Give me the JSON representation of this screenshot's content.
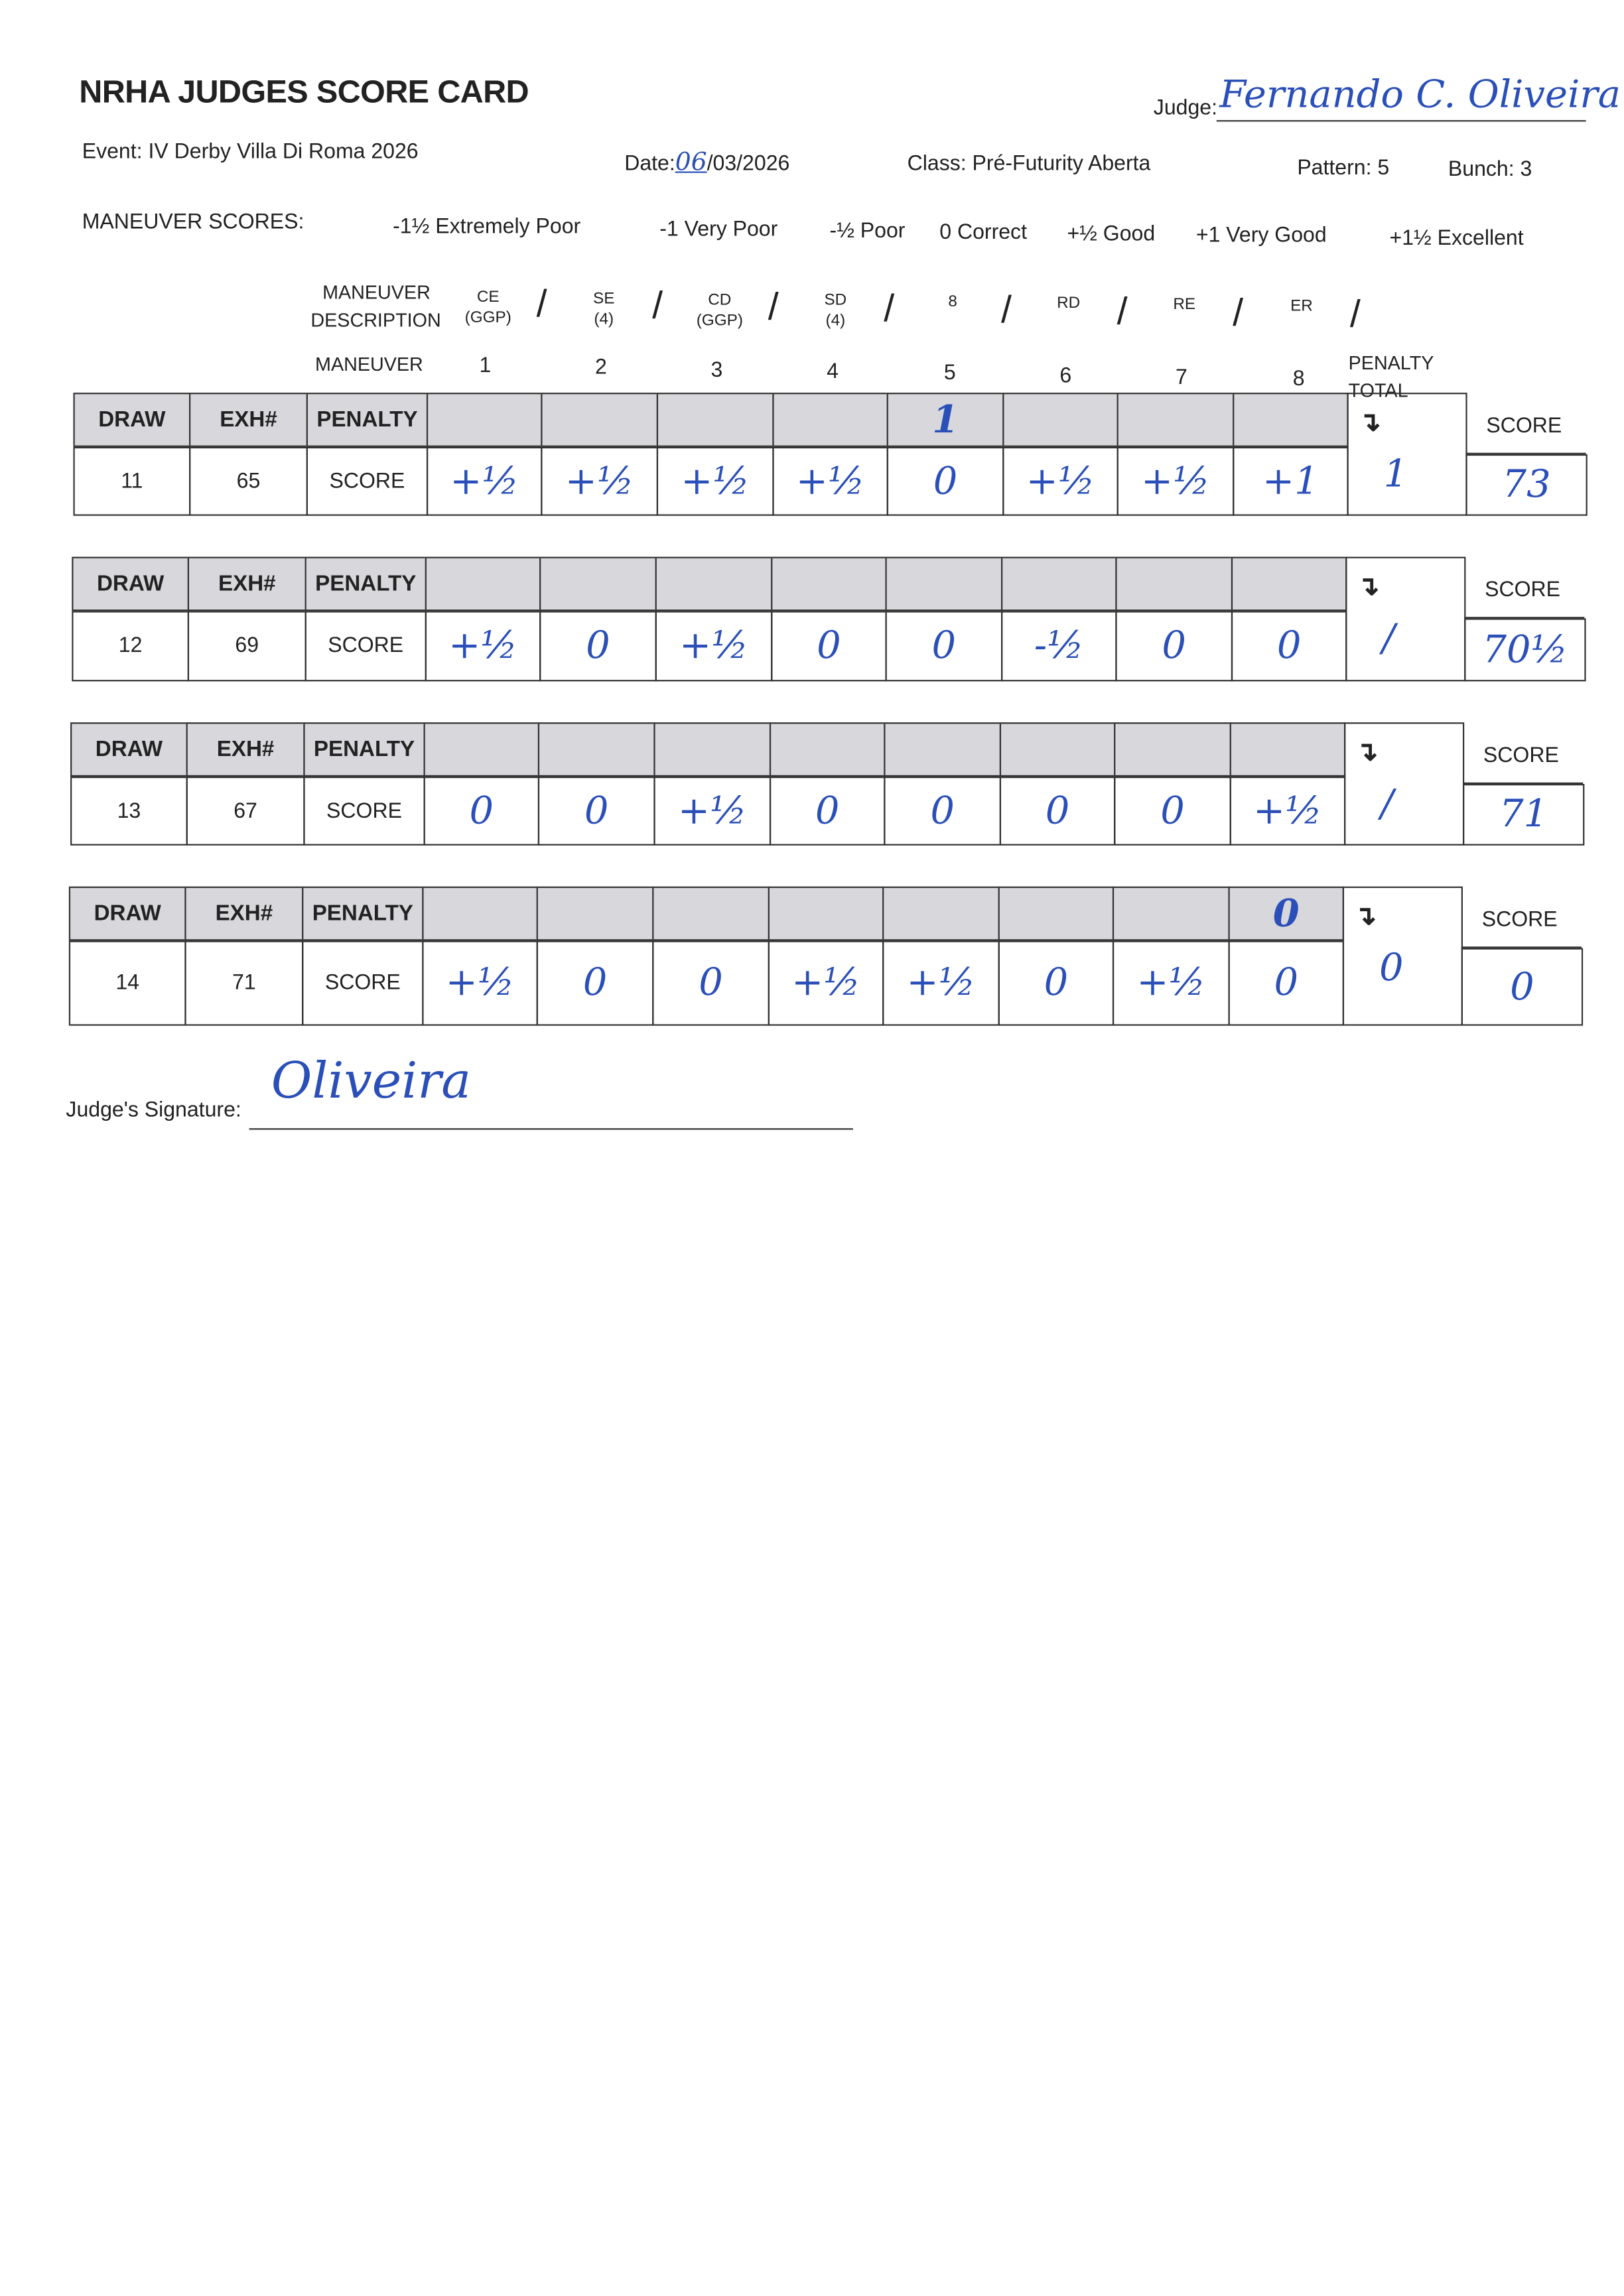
{
  "title": "NRHA JUDGES SCORE CARD",
  "judge": {
    "label": "Judge:",
    "signature": "Fernando C. Oliveira"
  },
  "event": "Event: IV Derby Villa Di Roma 2026",
  "date": {
    "label": "Date:",
    "day": "06",
    "rest": "/03/2026"
  },
  "class": "Class: Pré-Futurity Aberta",
  "pattern": "Pattern: 5",
  "bunch": "Bunch: 3",
  "maneuver_scores": {
    "label": "MANEUVER SCORES:",
    "scale": [
      "-1½ Extremely Poor",
      "-1 Very Poor",
      "-½ Poor",
      "0 Correct",
      "+½ Good",
      "+1 Very Good",
      "+1½ Excellent"
    ]
  },
  "maneuver_description": {
    "label1": "MANEUVER",
    "label2": "DESCRIPTION",
    "items": [
      [
        "CE",
        "(GGP)"
      ],
      [
        "SE",
        "(4)"
      ],
      [
        "CD",
        "(GGP)"
      ],
      [
        "SD",
        "(4)"
      ],
      [
        "8",
        ""
      ],
      [
        "RD",
        ""
      ],
      [
        "RE",
        ""
      ],
      [
        "ER",
        ""
      ]
    ]
  },
  "maneuver_numbers": {
    "label": "MANEUVER",
    "items": [
      "1",
      "2",
      "3",
      "4",
      "5",
      "6",
      "7",
      "8"
    ],
    "penalty_total_1": "PENALTY",
    "penalty_total_2": "TOTAL"
  },
  "headers": {
    "draw": "DRAW",
    "exh": "EXH#",
    "penalty": "PENALTY",
    "score_row": "SCORE",
    "score_col": "SCORE",
    "arrow": "↴"
  },
  "entries": [
    {
      "draw": "11",
      "exh": "65",
      "penalties": [
        "",
        "",
        "",
        "",
        "1",
        "",
        "",
        ""
      ],
      "scores": [
        "+½",
        "+½",
        "+½",
        "+½",
        "0",
        "+½",
        "+½",
        "+1"
      ],
      "penalty_total": "1",
      "score": "73"
    },
    {
      "draw": "12",
      "exh": "69",
      "penalties": [
        "",
        "",
        "",
        "",
        "",
        "",
        "",
        ""
      ],
      "scores": [
        "+½",
        "0",
        "+½",
        "0",
        "0",
        "-½",
        "0",
        "0"
      ],
      "penalty_total": "/",
      "score": "70½"
    },
    {
      "draw": "13",
      "exh": "67",
      "penalties": [
        "",
        "",
        "",
        "",
        "",
        "",
        "",
        ""
      ],
      "scores": [
        "0",
        "0",
        "+½",
        "0",
        "0",
        "0",
        "0",
        "+½"
      ],
      "penalty_total": "/",
      "score": "71"
    },
    {
      "draw": "14",
      "exh": "71",
      "penalties": [
        "",
        "",
        "",
        "",
        "",
        "",
        "",
        "0"
      ],
      "scores": [
        "+½",
        "0",
        "0",
        "+½",
        "+½",
        "0",
        "+½",
        "0"
      ],
      "penalty_total": "0",
      "score": "0"
    }
  ],
  "signature": {
    "label": "Judge's Signature:",
    "value": "Oliveira"
  },
  "colors": {
    "ink": "#2a4fb8",
    "header_fill": "#d8d8dc"
  }
}
